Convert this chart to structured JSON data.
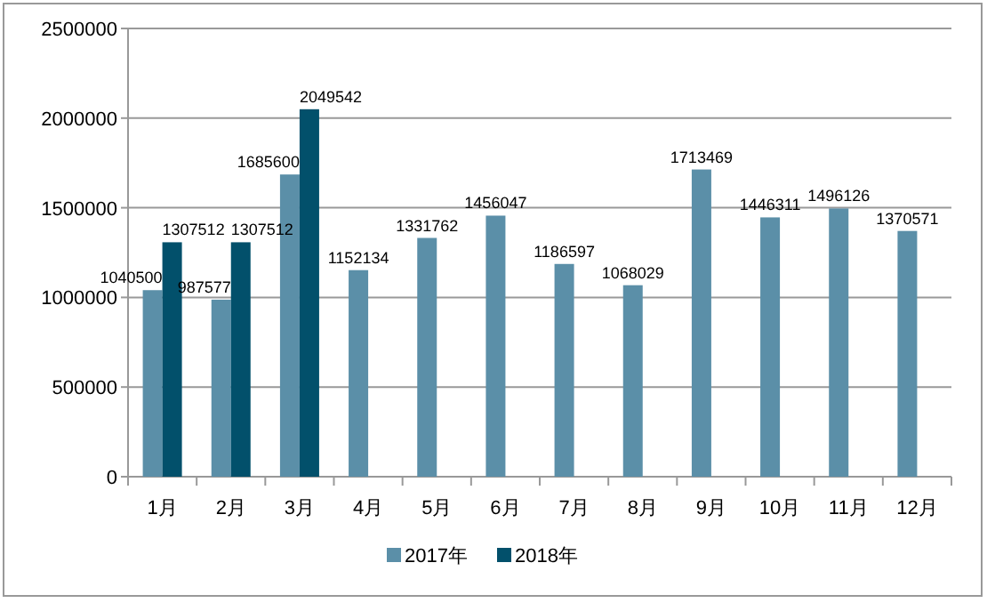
{
  "chart_data": {
    "type": "bar",
    "categories": [
      "1月",
      "2月",
      "3月",
      "4月",
      "5月",
      "6月",
      "7月",
      "8月",
      "9月",
      "10月",
      "11月",
      "12月"
    ],
    "series": [
      {
        "name": "2017年",
        "color": "#5b8fa8",
        "values": [
          1040500,
          987577,
          1685600,
          1152134,
          1331762,
          1456047,
          1186597,
          1068029,
          1713469,
          1446311,
          1496126,
          1370571
        ]
      },
      {
        "name": "2018年",
        "color": "#02506b",
        "values": [
          1307512,
          1307512,
          2049542,
          null,
          null,
          null,
          null,
          null,
          null,
          null,
          null,
          null
        ]
      }
    ],
    "ylim": [
      0,
      2500000
    ],
    "yticks": [
      0,
      500000,
      1000000,
      1500000,
      2000000,
      2500000
    ],
    "grid": "y",
    "legend": "bottom",
    "data_labels": true
  }
}
